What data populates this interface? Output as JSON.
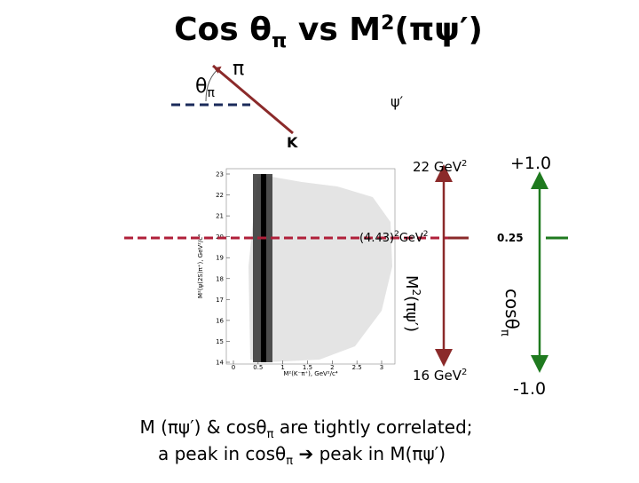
{
  "slide": {
    "title": [
      "Cos θ",
      "π",
      " vs M",
      "2",
      "(πψ′)"
    ],
    "diagram": {
      "theta": [
        "θ",
        "π"
      ],
      "pi": "π",
      "psi": "ψ′",
      "kaon": "K"
    },
    "plot": {
      "yticks": [
        "14",
        "15",
        "16",
        "17",
        "18",
        "19",
        "20",
        "21",
        "22",
        "23"
      ],
      "xticks": [
        "0",
        "0.5",
        "1",
        "1.5",
        "2",
        "2.5",
        "3"
      ],
      "xlabel": "M²(K⁻π⁺), GeV²/c⁴",
      "ylabel": "M²(ψ(2S)π⁺), GeV²/c⁴"
    },
    "mass_axis": {
      "top": [
        "22 GeV",
        "2"
      ],
      "middle": [
        "(4.43)",
        "2",
        "GeV",
        "2"
      ],
      "bottom": [
        "16 GeV",
        "2"
      ],
      "label": [
        "M",
        "2",
        "(πψ′)"
      ]
    },
    "cos_axis": {
      "top": "+1.0",
      "middle": "0.25",
      "bottom": "-1.0",
      "label": [
        "cosθ",
        "π"
      ]
    },
    "caption": [
      [
        "M (πψ′) & cosθ",
        "π",
        " are tightly correlated;"
      ],
      [
        "a peak in cosθ",
        "π",
        " ➔ peak in M(πψ′)"
      ]
    ]
  }
}
